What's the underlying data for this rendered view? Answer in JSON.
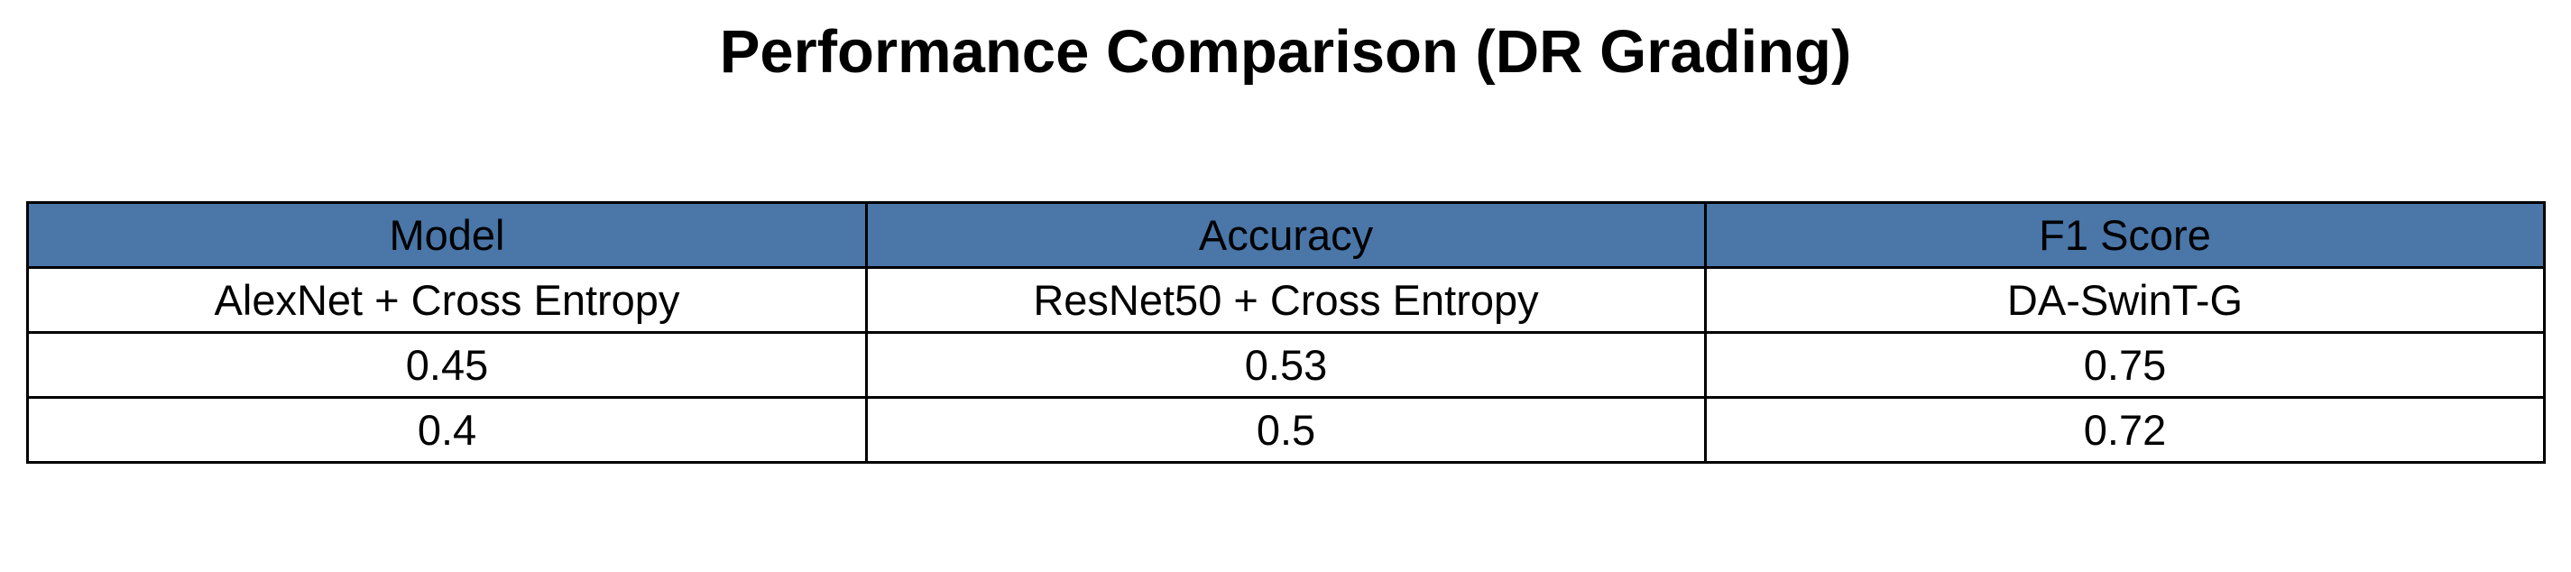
{
  "colors": {
    "header_bg": "#4a76a8",
    "cell_bg": "#ffffff",
    "border": "#000000",
    "text": "#000000"
  },
  "chart_data": {
    "type": "table",
    "title": "Performance Comparison (DR Grading)",
    "columns": [
      "Model",
      "Accuracy",
      "F1 Score"
    ],
    "rows": [
      [
        "AlexNet + Cross Entropy",
        "ResNet50 + Cross Entropy",
        "DA-SwinT-G"
      ],
      [
        "0.45",
        "0.53",
        "0.75"
      ],
      [
        "0.4",
        "0.5",
        "0.72"
      ]
    ]
  }
}
